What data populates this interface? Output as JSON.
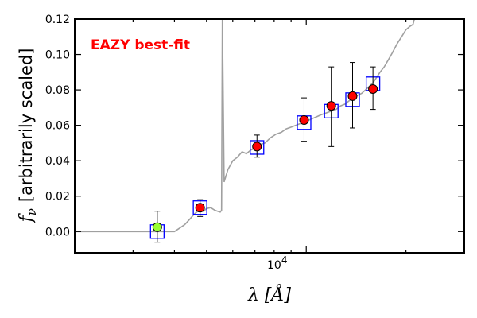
{
  "chart_data": {
    "type": "scatter",
    "annotation": "EAZY best-fit",
    "annotation_color": "#ff0000",
    "xlabel": "λ [Å]",
    "ylabel_symbol": "f",
    "ylabel_sub": "ν",
    "ylabel_text": "[arbitrarily scaled]",
    "x_scale": "log",
    "xlim": [
      2000,
      30000
    ],
    "ylim": [
      -0.012,
      0.12
    ],
    "x_tick_label": "10",
    "x_tick_exp": "4",
    "y_ticks": [
      0.0,
      0.02,
      0.04,
      0.06,
      0.08,
      0.1,
      0.12
    ],
    "y_tick_labels": [
      "0.00",
      "0.02",
      "0.04",
      "0.06",
      "0.08",
      "0.10",
      "0.12"
    ],
    "grid": false,
    "colors": {
      "model": "#a0a0a0",
      "square": "#0000ff",
      "point_detected": "#ff0000",
      "point_first": "#99ff33",
      "errorbar": "#000000"
    },
    "series": [
      {
        "kind": "observed",
        "points": [
          {
            "x": 3550,
            "y": 0.0025,
            "yerr_low": 0.0085,
            "yerr_high": 0.009,
            "fill": "#99ff33"
          },
          {
            "x": 4780,
            "y": 0.0135,
            "yerr_low": 0.005,
            "yerr_high": 0.0045,
            "fill": "#ff0000"
          },
          {
            "x": 7100,
            "y": 0.048,
            "yerr_low": 0.006,
            "yerr_high": 0.0065,
            "fill": "#ff0000"
          },
          {
            "x": 9850,
            "y": 0.063,
            "yerr_low": 0.012,
            "yerr_high": 0.0125,
            "fill": "#ff0000"
          },
          {
            "x": 11900,
            "y": 0.071,
            "yerr_low": 0.023,
            "yerr_high": 0.022,
            "fill": "#ff0000"
          },
          {
            "x": 13800,
            "y": 0.0765,
            "yerr_low": 0.018,
            "yerr_high": 0.019,
            "fill": "#ff0000"
          },
          {
            "x": 15900,
            "y": 0.0805,
            "yerr_low": 0.0115,
            "yerr_high": 0.0125,
            "fill": "#ff0000"
          }
        ]
      },
      {
        "kind": "model_photometry",
        "points": [
          {
            "x": 3550,
            "y": 0.0
          },
          {
            "x": 4780,
            "y": 0.0135
          },
          {
            "x": 7100,
            "y": 0.0475
          },
          {
            "x": 9850,
            "y": 0.0615
          },
          {
            "x": 11900,
            "y": 0.068
          },
          {
            "x": 13800,
            "y": 0.0745
          },
          {
            "x": 15900,
            "y": 0.0835
          }
        ]
      },
      {
        "kind": "model_spectrum",
        "x": [
          2000,
          2600,
          3150,
          3300,
          3500,
          3700,
          3900,
          4000,
          4150,
          4300,
          4450,
          4600,
          4750,
          4900,
          5000,
          5150,
          5300,
          5400,
          5500,
          5550,
          5580,
          5650,
          5800,
          6000,
          6200,
          6400,
          6600,
          6800,
          7000,
          7200,
          7500,
          7800,
          8100,
          8400,
          8700,
          9000,
          9300,
          9600,
          9900,
          10200,
          10500,
          10800,
          11100,
          11500,
          11900,
          12300,
          12700,
          13100,
          13500,
          13900,
          14300,
          14700,
          15100,
          15500,
          15900,
          16300,
          16700,
          17200,
          17700,
          18200,
          18800,
          19400,
          20000,
          20600,
          21000,
          21200
        ],
        "y": [
          0.0,
          0.0,
          0.0,
          0.0,
          0.0,
          0.0,
          0.0,
          0.0,
          0.002,
          0.004,
          0.007,
          0.01,
          0.012,
          0.0115,
          0.013,
          0.0135,
          0.012,
          0.0115,
          0.011,
          0.012,
          0.12,
          0.028,
          0.035,
          0.04,
          0.042,
          0.045,
          0.044,
          0.046,
          0.047,
          0.049,
          0.05,
          0.053,
          0.055,
          0.056,
          0.058,
          0.059,
          0.06,
          0.061,
          0.0615,
          0.063,
          0.064,
          0.065,
          0.066,
          0.067,
          0.068,
          0.069,
          0.071,
          0.072,
          0.074,
          0.075,
          0.077,
          0.078,
          0.08,
          0.082,
          0.084,
          0.087,
          0.09,
          0.093,
          0.097,
          0.101,
          0.106,
          0.11,
          0.114,
          0.116,
          0.117,
          0.12
        ]
      }
    ]
  }
}
